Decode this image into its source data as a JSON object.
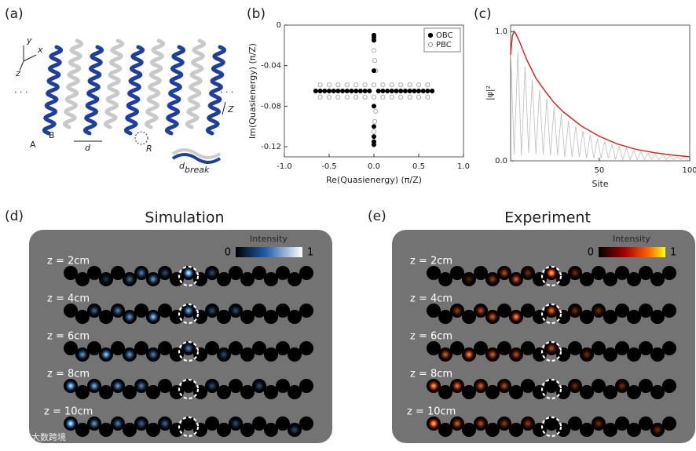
{
  "panel_a": {
    "label": "(a)",
    "axes": [
      "y",
      "x",
      "z"
    ],
    "sites": [
      "A",
      "B"
    ],
    "d": "d",
    "R": "R",
    "Z": "Z",
    "d_break": {
      "main": "d",
      "sub": "break"
    },
    "ellipsis": "· · ·"
  },
  "chart_data": [
    {
      "type": "scatter",
      "label": "(b)",
      "xlabel": "Re(Quasienergy) (π/Z)",
      "ylabel": "Im(Quasienergy) (π/Z)",
      "xlim": [
        -1,
        1
      ],
      "ylim": [
        -0.13,
        0
      ],
      "xticks": [
        {
          "value": -1,
          "label": "-1.0"
        },
        -0.5,
        {
          "value": 0,
          "label": "0.0"
        },
        0.5,
        {
          "value": 1,
          "label": "1.0"
        }
      ],
      "yticks": [
        0,
        -0.04,
        -0.08,
        -0.12
      ],
      "legend": "upper right",
      "series": [
        {
          "name": "OBC",
          "color": "#000000",
          "x": [
            -0.65,
            -0.6,
            -0.55,
            -0.5,
            -0.45,
            -0.4,
            -0.35,
            -0.3,
            -0.25,
            -0.2,
            -0.15,
            -0.1,
            -0.05,
            0.05,
            0.1,
            0.15,
            0.2,
            0.25,
            0.3,
            0.35,
            0.4,
            0.45,
            0.5,
            0.55,
            0.6,
            0.65,
            0,
            0,
            0,
            0,
            0,
            0,
            0,
            0,
            0
          ],
          "y": [
            -0.065,
            -0.065,
            -0.065,
            -0.065,
            -0.065,
            -0.065,
            -0.065,
            -0.065,
            -0.065,
            -0.065,
            -0.065,
            -0.065,
            -0.065,
            -0.065,
            -0.065,
            -0.065,
            -0.065,
            -0.065,
            -0.065,
            -0.065,
            -0.065,
            -0.065,
            -0.065,
            -0.065,
            -0.065,
            -0.065,
            -0.01,
            -0.012,
            -0.015,
            -0.045,
            -0.08,
            -0.1,
            -0.11,
            -0.115,
            -0.118
          ]
        },
        {
          "name": "PBC",
          "color": "#9a9a9a",
          "x": [
            -0.6,
            -0.5,
            -0.4,
            -0.3,
            -0.2,
            -0.1,
            0,
            0.1,
            0.2,
            0.3,
            0.4,
            0.5,
            0.6,
            -0.6,
            -0.5,
            -0.4,
            -0.3,
            -0.2,
            -0.1,
            0,
            0.1,
            0.2,
            0.3,
            0.4,
            0.5,
            0.6,
            -0.65,
            0.65,
            0,
            0,
            0.01,
            0.02,
            0.02,
            0.01,
            0,
            0
          ],
          "y": [
            -0.059,
            -0.059,
            -0.059,
            -0.059,
            -0.059,
            -0.059,
            -0.059,
            -0.059,
            -0.059,
            -0.059,
            -0.059,
            -0.059,
            -0.059,
            -0.071,
            -0.071,
            -0.071,
            -0.071,
            -0.071,
            -0.071,
            -0.071,
            -0.071,
            -0.071,
            -0.071,
            -0.071,
            -0.071,
            -0.071,
            -0.065,
            -0.065,
            -0.015,
            -0.025,
            -0.035,
            -0.045,
            -0.085,
            -0.095,
            -0.105,
            -0.115
          ]
        }
      ]
    },
    {
      "type": "line",
      "label": "(c)",
      "xlabel": "Site",
      "ylabel": "|ψ|²",
      "xlim": [
        1,
        100
      ],
      "ylim": [
        0,
        1.05
      ],
      "xticks": [
        50,
        100
      ],
      "yticks": [
        {
          "value": 0,
          "label": "0.0"
        },
        {
          "value": 1,
          "label": "1.0"
        }
      ],
      "series": [
        {
          "color": "#bdbdbd",
          "x": [
            1,
            3,
            5,
            7,
            9,
            11,
            13,
            15,
            17,
            19,
            21,
            23,
            25,
            27,
            29,
            31,
            33,
            35,
            37,
            39,
            41,
            43,
            45,
            47,
            49,
            51,
            53,
            55,
            57,
            59,
            61,
            63,
            65,
            67,
            69,
            71,
            73,
            75,
            77,
            79,
            81,
            83,
            85,
            87,
            89,
            91,
            93,
            95,
            97,
            99
          ],
          "values": [
            0.85,
            0.05,
            0.84,
            0.04,
            0.73,
            0.06,
            0.63,
            0.05,
            0.55,
            0.05,
            0.48,
            0.04,
            0.41,
            0.04,
            0.36,
            0.03,
            0.31,
            0.03,
            0.27,
            0.03,
            0.23,
            0.02,
            0.2,
            0.02,
            0.17,
            0.02,
            0.15,
            0.02,
            0.13,
            0.01,
            0.11,
            0.01,
            0.1,
            0.01,
            0.08,
            0.01,
            0.07,
            0.01,
            0.06,
            0.01,
            0.05,
            0.01,
            0.045,
            0.01,
            0.036,
            0.01,
            0.03,
            0.01,
            0.027,
            0.005
          ]
        },
        {
          "color": "#d62728",
          "x": [
            1,
            2,
            3,
            4,
            6,
            8,
            10,
            15,
            20,
            25,
            30,
            40,
            50,
            60,
            70,
            80,
            90,
            100
          ],
          "values": [
            0.82,
            0.97,
            1.0,
            0.98,
            0.92,
            0.85,
            0.78,
            0.64,
            0.54,
            0.45,
            0.38,
            0.27,
            0.19,
            0.13,
            0.09,
            0.064,
            0.045,
            0.031
          ]
        }
      ]
    }
  ],
  "panel_d": {
    "label": "(d)",
    "title": "Simulation",
    "colorbar": {
      "title": "Intensity",
      "min": "0",
      "max": "1"
    },
    "rows": [
      "z = 2cm",
      "z = 4cm",
      "z = 6cm",
      "z = 8cm",
      "z = 10cm"
    ]
  },
  "panel_e": {
    "label": "(e)",
    "title": "Experiment",
    "colorbar": {
      "title": "Intensity",
      "min": "0",
      "max": "1"
    },
    "rows": [
      "z = 2cm",
      "z = 4cm",
      "z = 6cm",
      "z = 8cm",
      "z = 10cm"
    ]
  },
  "watermark": "大数跨境"
}
